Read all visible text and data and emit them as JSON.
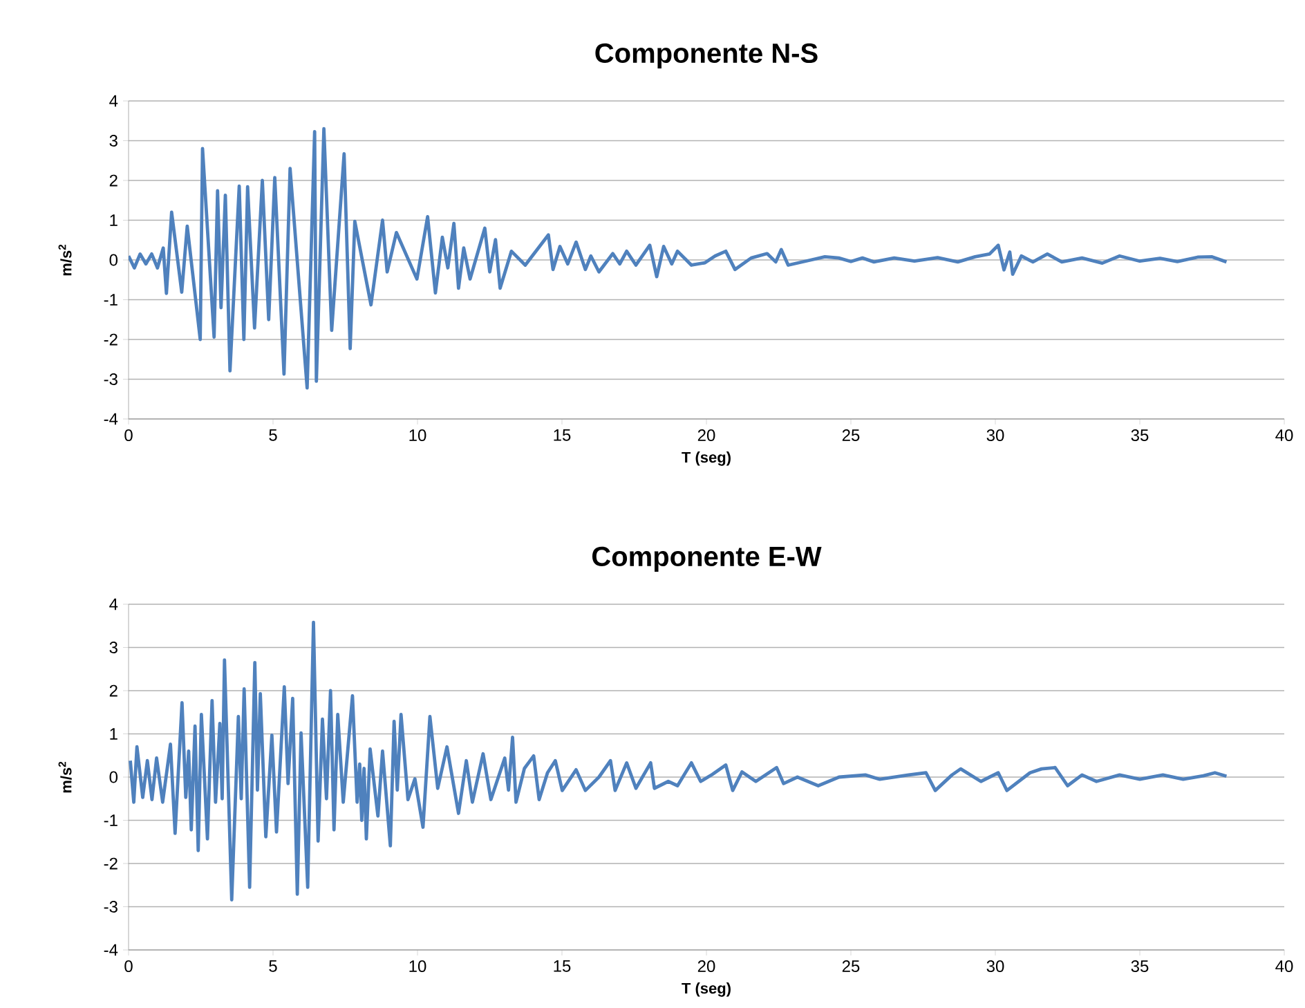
{
  "chart_data": [
    {
      "type": "line",
      "title": "Componente N-S",
      "xlabel": "T (seg)",
      "ylabel": "m/s$^{2}$",
      "xlim": [
        0,
        40
      ],
      "ylim": [
        -4,
        4
      ],
      "xticks": [
        0,
        5,
        10,
        15,
        20,
        25,
        30,
        35,
        40
      ],
      "yticks": [
        -4,
        -3,
        -2,
        -1,
        0,
        1,
        2,
        3,
        4
      ],
      "grid": "y",
      "series": [
        {
          "color": "#4f81bd",
          "x": [
            0,
            0.2,
            0.4,
            0.6,
            0.8,
            1.0,
            1.2,
            1.31,
            1.49,
            1.84,
            2.03,
            2.48,
            2.56,
            2.96,
            3.08,
            3.2,
            3.35,
            3.51,
            3.83,
            3.99,
            4.12,
            4.36,
            4.63,
            4.85,
            5.06,
            5.38,
            5.59,
            6.18,
            6.44,
            6.5,
            6.76,
            7.03,
            7.46,
            7.67,
            7.83,
            8.39,
            8.79,
            8.95,
            9.27,
            9.98,
            10.35,
            10.62,
            10.86,
            11.05,
            11.26,
            11.42,
            11.6,
            11.82,
            12.33,
            12.5,
            12.7,
            12.86,
            13.25,
            13.73,
            14.53,
            14.69,
            14.93,
            15.2,
            15.49,
            15.81,
            16.0,
            16.28,
            16.76,
            17.0,
            17.24,
            17.56,
            18.04,
            18.28,
            18.52,
            18.8,
            19.0,
            19.48,
            19.95,
            20.3,
            20.67,
            20.99,
            21.55,
            22.1,
            22.4,
            22.59,
            22.83,
            23.62,
            24.1,
            24.58,
            25,
            25.4,
            25.8,
            26.5,
            27.2,
            28,
            28.7,
            29.3,
            29.8,
            30.1,
            30.3,
            30.5,
            30.6,
            30.9,
            31.3,
            31.8,
            32.3,
            33,
            33.7,
            34.3,
            35,
            35.7,
            36.3,
            37,
            37.5,
            38
          ],
          "values": [
            0.1,
            -0.2,
            0.15,
            -0.1,
            0.15,
            -0.2,
            0.3,
            -0.84,
            1.2,
            -0.81,
            0.85,
            -2.0,
            2.8,
            -1.94,
            1.74,
            -1.2,
            1.63,
            -2.79,
            1.86,
            -2.0,
            1.84,
            -1.71,
            2.0,
            -1.5,
            2.07,
            -2.87,
            2.3,
            -3.22,
            3.23,
            -3.05,
            3.3,
            -1.77,
            2.67,
            -2.23,
            0.97,
            -1.13,
            1.0,
            -0.3,
            0.69,
            -0.48,
            1.09,
            -0.83,
            0.57,
            -0.2,
            0.92,
            -0.71,
            0.3,
            -0.48,
            0.8,
            -0.3,
            0.51,
            -0.71,
            0.22,
            -0.13,
            0.63,
            -0.24,
            0.34,
            -0.1,
            0.45,
            -0.24,
            0.1,
            -0.3,
            0.16,
            -0.1,
            0.22,
            -0.13,
            0.37,
            -0.42,
            0.34,
            -0.1,
            0.22,
            -0.13,
            -0.07,
            0.1,
            0.22,
            -0.24,
            0.05,
            0.16,
            -0.05,
            0.26,
            -0.13,
            0,
            0.08,
            0.05,
            -0.04,
            0.05,
            -0.05,
            0.05,
            -0.03,
            0.06,
            -0.05,
            0.08,
            0.15,
            0.37,
            -0.25,
            0.2,
            -0.36,
            0.1,
            -0.05,
            0.15,
            -0.05,
            0.05,
            -0.08,
            0.1,
            -0.03,
            0.04,
            -0.04,
            0.07,
            0.08,
            -0.05
          ]
        }
      ]
    },
    {
      "type": "line",
      "title": "Componente E-W",
      "xlabel": "T (seg)",
      "ylabel": "m/s$^{2}$",
      "xlim": [
        0,
        40
      ],
      "ylim": [
        -4,
        4
      ],
      "xticks": [
        0,
        5,
        10,
        15,
        20,
        25,
        30,
        35,
        40
      ],
      "yticks": [
        -4,
        -3,
        -2,
        -1,
        0,
        1,
        2,
        3,
        4
      ],
      "grid": "y",
      "series": [
        {
          "color": "#4f81bd",
          "x": [
            0.06,
            0.18,
            0.29,
            0.49,
            0.65,
            0.81,
            0.97,
            1.18,
            1.45,
            1.61,
            1.85,
            1.98,
            2.08,
            2.17,
            2.3,
            2.41,
            2.52,
            2.73,
            2.89,
            3.01,
            3.16,
            3.24,
            3.32,
            3.57,
            3.8,
            3.9,
            4.0,
            4.19,
            4.37,
            4.46,
            4.56,
            4.75,
            4.96,
            5.12,
            5.39,
            5.52,
            5.68,
            5.84,
            5.97,
            6.2,
            6.4,
            6.56,
            6.71,
            6.85,
            6.99,
            7.11,
            7.24,
            7.43,
            7.75,
            7.91,
            8.0,
            8.07,
            8.15,
            8.23,
            8.36,
            8.63,
            8.79,
            9.06,
            9.19,
            9.3,
            9.43,
            9.67,
            9.91,
            10.19,
            10.43,
            10.7,
            11.02,
            11.42,
            11.69,
            11.9,
            12.27,
            12.54,
            13.02,
            13.15,
            13.29,
            13.41,
            13.7,
            14.02,
            14.21,
            14.5,
            14.77,
            15.01,
            15.49,
            15.81,
            16.28,
            16.68,
            16.84,
            17.24,
            17.56,
            18.07,
            18.2,
            18.68,
            19.0,
            19.48,
            19.8,
            20.2,
            20.67,
            20.91,
            21.23,
            21.71,
            22.43,
            22.67,
            23.15,
            23.87,
            24.59,
            25.5,
            26,
            27,
            27.6,
            27.92,
            28.5,
            28.8,
            29.5,
            30.1,
            30.4,
            31.2,
            31.6,
            32.07,
            32.5,
            33,
            33.5,
            34.3,
            35,
            35.8,
            36.5,
            37.2,
            37.6,
            38
          ],
          "values": [
            0.38,
            -0.58,
            0.7,
            -0.47,
            0.38,
            -0.52,
            0.44,
            -0.58,
            0.76,
            -1.3,
            1.72,
            -0.47,
            0.6,
            -1.22,
            1.18,
            -1.7,
            1.45,
            -1.43,
            1.77,
            -0.58,
            1.24,
            -0.5,
            2.71,
            -2.84,
            1.4,
            -0.5,
            2.04,
            -2.55,
            2.65,
            -0.3,
            1.93,
            -1.38,
            0.97,
            -1.27,
            2.09,
            -0.15,
            1.82,
            -2.71,
            1.02,
            -2.55,
            3.58,
            -1.48,
            1.34,
            -0.5,
            2.0,
            -1.22,
            1.45,
            -0.58,
            1.88,
            -0.58,
            0.3,
            -1.0,
            0.2,
            -1.43,
            0.65,
            -0.9,
            0.6,
            -1.59,
            1.29,
            -0.3,
            1.45,
            -0.52,
            -0.04,
            -1.16,
            1.4,
            -0.26,
            0.7,
            -0.84,
            0.38,
            -0.58,
            0.54,
            -0.52,
            0.44,
            -0.3,
            0.92,
            -0.58,
            0.2,
            0.49,
            -0.52,
            0.1,
            0.38,
            -0.31,
            0.17,
            -0.31,
            0,
            0.38,
            -0.31,
            0.33,
            -0.26,
            0.33,
            -0.26,
            -0.1,
            -0.2,
            0.33,
            -0.1,
            0.06,
            0.28,
            -0.31,
            0.12,
            -0.1,
            0.22,
            -0.15,
            0,
            -0.2,
            0,
            0.05,
            -0.05,
            0.05,
            0.1,
            -0.31,
            0.05,
            0.19,
            -0.1,
            0.1,
            -0.31,
            0.1,
            0.19,
            0.22,
            -0.2,
            0.05,
            -0.1,
            0.05,
            -0.05,
            0.05,
            -0.05,
            0.03,
            0.1,
            0.02
          ]
        }
      ]
    }
  ]
}
